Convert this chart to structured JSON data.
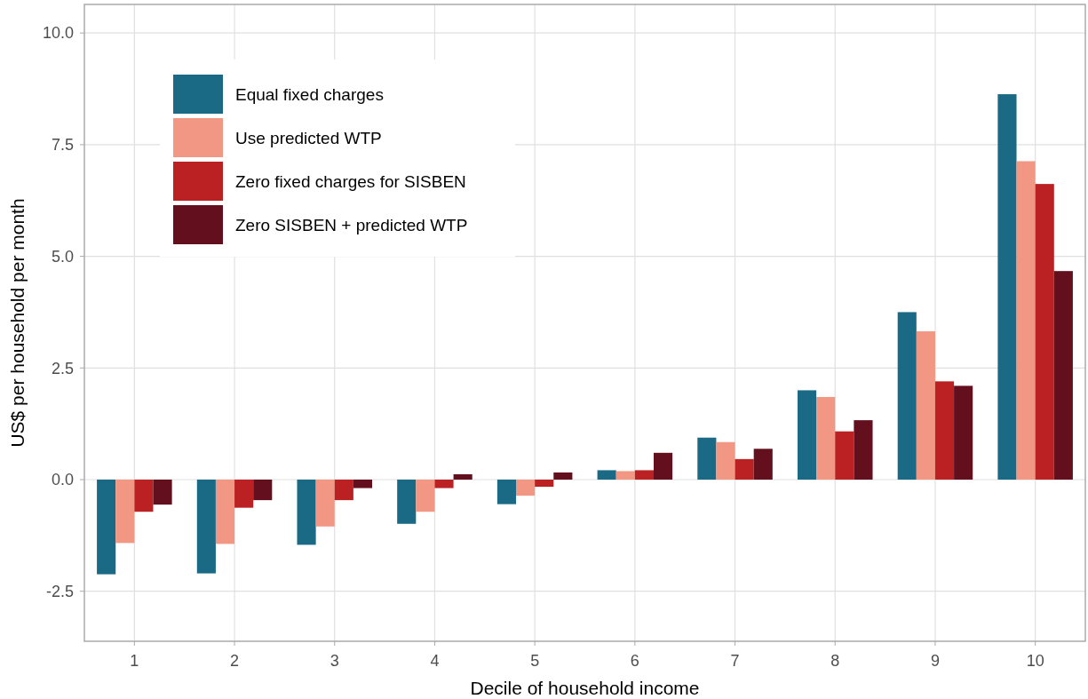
{
  "chart_data": {
    "type": "bar",
    "xlabel": "Decile of household income",
    "ylabel": "US$ per household per month",
    "categories": [
      "1",
      "2",
      "3",
      "4",
      "5",
      "6",
      "7",
      "8",
      "9",
      "10"
    ],
    "series": [
      {
        "name": "Equal fixed charges",
        "color": "#1a6985",
        "values": [
          -2.12,
          -2.1,
          -1.46,
          -0.99,
          -0.55,
          0.21,
          0.94,
          2.0,
          3.75,
          8.63
        ]
      },
      {
        "name": "Use predicted WTP",
        "color": "#f19784",
        "values": [
          -1.42,
          -1.44,
          -1.05,
          -0.72,
          -0.36,
          0.19,
          0.84,
          1.85,
          3.32,
          7.13
        ]
      },
      {
        "name": "Zero fixed charges for SISBEN",
        "color": "#bb2123",
        "values": [
          -0.72,
          -0.63,
          -0.46,
          -0.19,
          -0.16,
          0.21,
          0.46,
          1.08,
          2.2,
          6.62
        ]
      },
      {
        "name": "Zero SISBEN + predicted WTP",
        "color": "#630f1e",
        "values": [
          -0.56,
          -0.46,
          -0.19,
          0.12,
          0.16,
          0.6,
          0.69,
          1.33,
          2.1,
          4.67
        ]
      }
    ],
    "ylim": [
      -3.62,
      10.64
    ],
    "yticks": [
      {
        "value": -2.5,
        "label": "-2.5"
      },
      {
        "value": 0,
        "label": "0.0"
      },
      {
        "value": 2.5,
        "label": "2.5"
      },
      {
        "value": 5,
        "label": "5.0"
      },
      {
        "value": 7.5,
        "label": "7.5"
      },
      {
        "value": 10,
        "label": "10.0"
      }
    ],
    "grid": true,
    "legend": "top left"
  }
}
